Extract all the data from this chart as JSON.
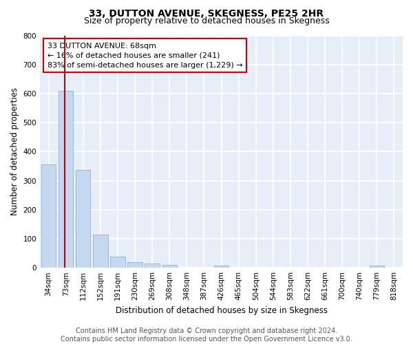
{
  "title": "33, DUTTON AVENUE, SKEGNESS, PE25 2HR",
  "subtitle": "Size of property relative to detached houses in Skegness",
  "xlabel": "Distribution of detached houses by size in Skegness",
  "ylabel": "Number of detached properties",
  "categories": [
    "34sqm",
    "73sqm",
    "112sqm",
    "152sqm",
    "191sqm",
    "230sqm",
    "269sqm",
    "308sqm",
    "348sqm",
    "387sqm",
    "426sqm",
    "465sqm",
    "504sqm",
    "544sqm",
    "583sqm",
    "622sqm",
    "661sqm",
    "700sqm",
    "740sqm",
    "779sqm",
    "818sqm"
  ],
  "values": [
    355,
    610,
    338,
    113,
    38,
    20,
    15,
    10,
    0,
    0,
    8,
    0,
    0,
    0,
    0,
    0,
    0,
    0,
    0,
    8,
    0
  ],
  "bar_color": "#c5d8f0",
  "bar_edge_color": "#7aa8d0",
  "ylim": [
    0,
    800
  ],
  "yticks": [
    0,
    100,
    200,
    300,
    400,
    500,
    600,
    700,
    800
  ],
  "annotation_line1": "33 DUTTON AVENUE: 68sqm",
  "annotation_line2": "← 16% of detached houses are smaller (241)",
  "annotation_line3": "83% of semi-detached houses are larger (1,229) →",
  "annotation_box_color": "#cc0000",
  "footer_line1": "Contains HM Land Registry data © Crown copyright and database right 2024.",
  "footer_line2": "Contains public sector information licensed under the Open Government Licence v3.0.",
  "background_color": "#e8eef8",
  "grid_color": "#ffffff",
  "title_fontsize": 10,
  "subtitle_fontsize": 9,
  "axis_label_fontsize": 8.5,
  "tick_fontsize": 7.5,
  "annotation_fontsize": 8,
  "footer_fontsize": 7
}
